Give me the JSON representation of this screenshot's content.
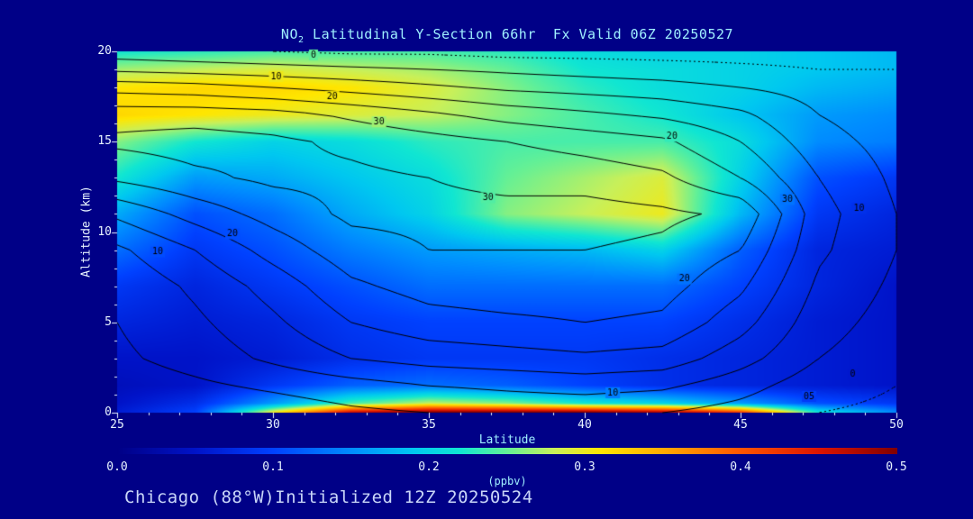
{
  "header": {
    "title_prefix": "NO",
    "title_sub": "2",
    "title_rest": " Latitudinal Y-Section 66hr  Fx Valid 06Z 20250527"
  },
  "footer": {
    "text": "Chicago (88°W)Initialized 12Z 20250524"
  },
  "axes": {
    "y_label": "Altitude (km)",
    "x_label": "Latitude",
    "y_ticks": [
      0,
      5,
      10,
      15,
      20
    ],
    "x_ticks": [
      25,
      30,
      35,
      40,
      45,
      50
    ]
  },
  "colorbar": {
    "label": "(ppbv)",
    "ticks": [
      "0.0",
      "0.1",
      "0.2",
      "0.3",
      "0.4",
      "0.5"
    ],
    "min": 0.0,
    "max": 0.5
  },
  "chart_data": {
    "type": "heatmap",
    "title": "NO2 Latitudinal Y-Section 66hr  Fx Valid 06Z 20250527",
    "xlabel": "Latitude",
    "ylabel": "Altitude (km)",
    "xlim": [
      25,
      50
    ],
    "ylim": [
      0,
      20
    ],
    "units": "ppbv",
    "legend_position": "bottom-colorbar",
    "colormap": [
      [
        0.0,
        "#000086"
      ],
      [
        0.05,
        "#0013c8"
      ],
      [
        0.1,
        "#0041ff"
      ],
      [
        0.15,
        "#008cff"
      ],
      [
        0.19,
        "#00c8f0"
      ],
      [
        0.22,
        "#10e6d2"
      ],
      [
        0.25,
        "#64f096"
      ],
      [
        0.28,
        "#c8f05a"
      ],
      [
        0.31,
        "#ffe600"
      ],
      [
        0.35,
        "#ffaa00"
      ],
      [
        0.4,
        "#ff5500"
      ],
      [
        0.45,
        "#dc1400"
      ],
      [
        0.5,
        "#800000"
      ]
    ],
    "fill": {
      "lats": [
        25,
        27.5,
        30,
        32.5,
        35,
        37.5,
        40,
        42.5,
        45,
        47.5,
        50
      ],
      "alts": [
        0,
        0.5,
        1.5,
        3,
        5,
        7,
        9,
        11,
        13,
        15,
        16.5,
        18,
        19,
        20
      ],
      "values_ppbv": [
        [
          0.06,
          0.1,
          0.3,
          0.46,
          0.5,
          0.5,
          0.5,
          0.48,
          0.42,
          0.22,
          0.15
        ],
        [
          0.05,
          0.08,
          0.16,
          0.24,
          0.28,
          0.26,
          0.22,
          0.2,
          0.16,
          0.11,
          0.09
        ],
        [
          0.04,
          0.05,
          0.09,
          0.12,
          0.13,
          0.12,
          0.1,
          0.08,
          0.07,
          0.06,
          0.05
        ],
        [
          0.05,
          0.05,
          0.06,
          0.08,
          0.09,
          0.09,
          0.09,
          0.08,
          0.07,
          0.06,
          0.05
        ],
        [
          0.07,
          0.06,
          0.07,
          0.09,
          0.1,
          0.1,
          0.1,
          0.1,
          0.08,
          0.06,
          0.05
        ],
        [
          0.09,
          0.07,
          0.09,
          0.11,
          0.13,
          0.13,
          0.13,
          0.13,
          0.1,
          0.07,
          0.05
        ],
        [
          0.13,
          0.09,
          0.11,
          0.14,
          0.16,
          0.17,
          0.18,
          0.2,
          0.12,
          0.07,
          0.06
        ],
        [
          0.17,
          0.11,
          0.13,
          0.17,
          0.2,
          0.26,
          0.28,
          0.3,
          0.18,
          0.09,
          0.07
        ],
        [
          0.22,
          0.16,
          0.17,
          0.19,
          0.21,
          0.25,
          0.27,
          0.29,
          0.2,
          0.11,
          0.09
        ],
        [
          0.26,
          0.22,
          0.2,
          0.21,
          0.23,
          0.24,
          0.24,
          0.24,
          0.21,
          0.15,
          0.14
        ],
        [
          0.32,
          0.31,
          0.3,
          0.29,
          0.28,
          0.26,
          0.24,
          0.22,
          0.19,
          0.16,
          0.15
        ],
        [
          0.31,
          0.32,
          0.32,
          0.31,
          0.29,
          0.26,
          0.23,
          0.21,
          0.2,
          0.18,
          0.17
        ],
        [
          0.27,
          0.28,
          0.29,
          0.28,
          0.27,
          0.25,
          0.22,
          0.21,
          0.2,
          0.19,
          0.18
        ],
        [
          0.22,
          0.23,
          0.24,
          0.24,
          0.24,
          0.23,
          0.21,
          0.2,
          0.2,
          0.19,
          0.18
        ]
      ]
    },
    "contour_overlay": {
      "levels": [
        0,
        5,
        10,
        15,
        20,
        25,
        30,
        35
      ],
      "lats": [
        25,
        27.5,
        30,
        32.5,
        35,
        37.5,
        40,
        42.5,
        45,
        47.5,
        50
      ],
      "alts": [
        0,
        1.5,
        3,
        5,
        7,
        9,
        11,
        13,
        15,
        16.5,
        18,
        19,
        20
      ],
      "values": [
        [
          0,
          1,
          2,
          4,
          5,
          6,
          6,
          5,
          3,
          0,
          -1
        ],
        [
          2,
          4,
          6,
          8,
          10,
          11,
          12,
          11,
          7,
          2,
          0
        ],
        [
          4,
          7,
          11,
          15,
          17,
          18,
          19,
          18,
          12,
          5,
          2
        ],
        [
          5,
          9,
          14,
          20,
          23,
          24,
          25,
          24,
          17,
          7,
          3
        ],
        [
          6,
          11,
          17,
          24,
          27,
          28,
          28,
          27,
          21,
          9,
          4
        ],
        [
          9,
          15,
          22,
          28,
          30,
          30,
          30,
          29,
          25,
          11,
          5
        ],
        [
          16,
          22,
          27,
          31,
          31,
          31,
          32,
          31,
          29,
          12,
          5
        ],
        [
          26,
          29,
          31,
          31,
          30,
          29,
          28,
          26,
          20,
          10,
          4
        ],
        [
          31,
          32,
          31,
          29,
          27,
          25,
          23,
          21,
          15,
          7,
          3
        ],
        [
          28,
          28,
          27,
          24,
          21,
          18,
          16,
          14,
          11,
          5,
          2
        ],
        [
          18,
          17,
          15,
          13,
          11,
          9,
          8,
          7,
          5,
          3,
          1
        ],
        [
          9,
          8,
          7,
          6,
          5,
          4,
          3,
          2,
          1,
          0,
          0
        ],
        [
          2,
          1,
          0,
          -1,
          -1,
          -2,
          -2,
          -2,
          -2,
          -2,
          -2
        ]
      ],
      "labels": [
        {
          "text": "0",
          "lat": 31.3,
          "alt": 19.8
        },
        {
          "text": "10",
          "lat": 30.1,
          "alt": 18.6
        },
        {
          "text": "20",
          "lat": 31.9,
          "alt": 17.5
        },
        {
          "text": "30",
          "lat": 33.4,
          "alt": 16.1
        },
        {
          "text": "20",
          "lat": 42.8,
          "alt": 15.3
        },
        {
          "text": "30",
          "lat": 36.9,
          "alt": 11.9
        },
        {
          "text": "20",
          "lat": 28.7,
          "alt": 9.9
        },
        {
          "text": "10",
          "lat": 26.3,
          "alt": 8.9
        },
        {
          "text": "30",
          "lat": 46.5,
          "alt": 11.8
        },
        {
          "text": "10",
          "lat": 48.8,
          "alt": 11.3
        },
        {
          "text": "20",
          "lat": 43.2,
          "alt": 7.4
        },
        {
          "text": "10",
          "lat": 40.9,
          "alt": 1.1
        },
        {
          "text": "0",
          "lat": 48.6,
          "alt": 2.1
        },
        {
          "text": "05",
          "lat": 47.2,
          "alt": 0.9
        }
      ]
    }
  }
}
